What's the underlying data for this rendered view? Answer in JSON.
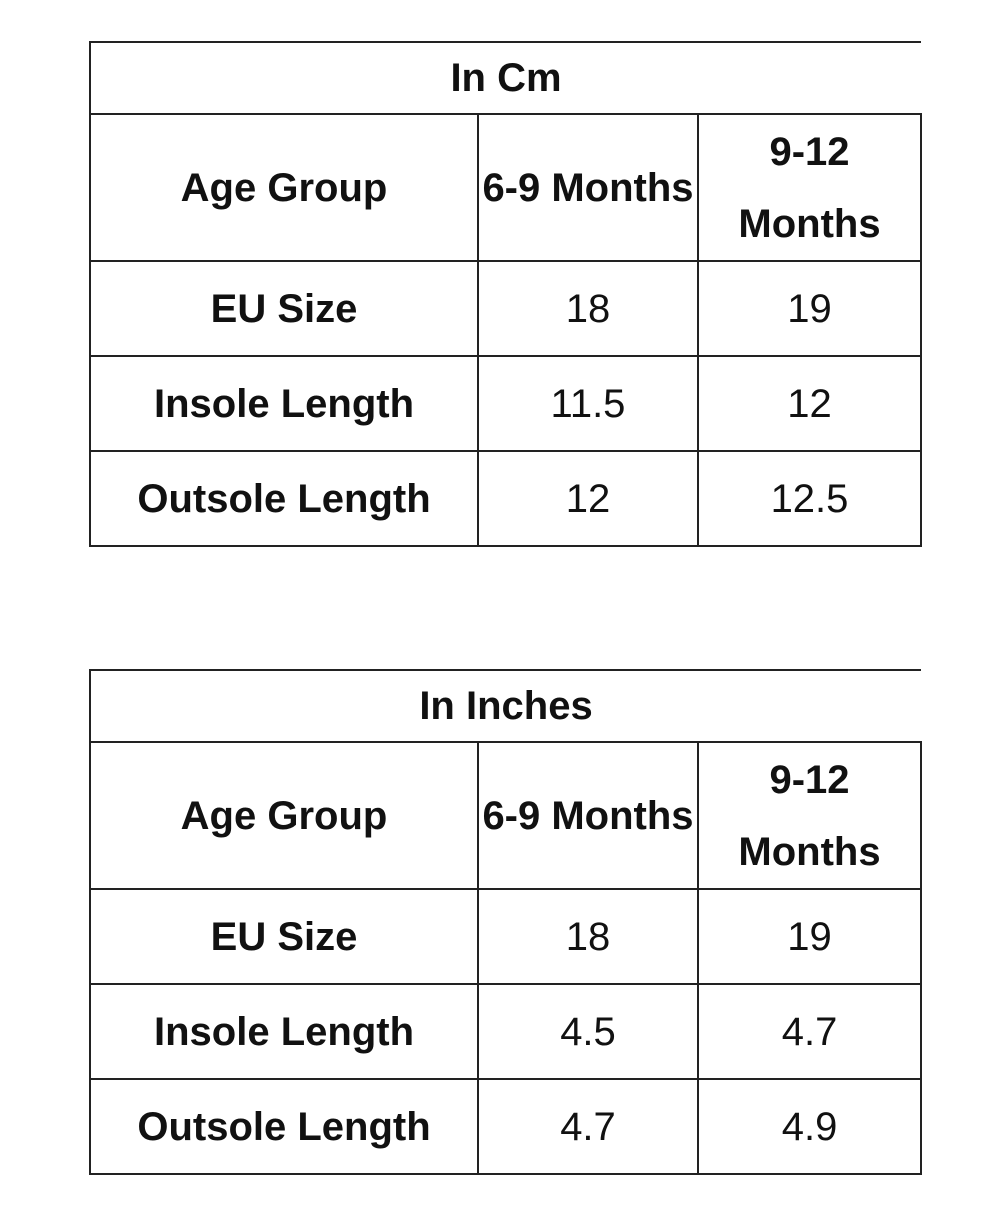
{
  "tables": [
    {
      "title": "In Cm",
      "header": [
        "Age Group",
        "6-9 Months",
        "9-12 Months"
      ],
      "rows": [
        [
          "EU Size",
          "18",
          "19"
        ],
        [
          "Insole Length",
          "11.5",
          "12"
        ],
        [
          "Outsole Length",
          "12",
          "12.5"
        ]
      ]
    },
    {
      "title": "In Inches",
      "header": [
        "Age Group",
        "6-9 Months",
        "9-12 Months"
      ],
      "rows": [
        [
          "EU Size",
          "18",
          "19"
        ],
        [
          "Insole Length",
          "4.5",
          "4.7"
        ],
        [
          "Outsole Length",
          "4.7",
          "4.9"
        ]
      ]
    }
  ]
}
